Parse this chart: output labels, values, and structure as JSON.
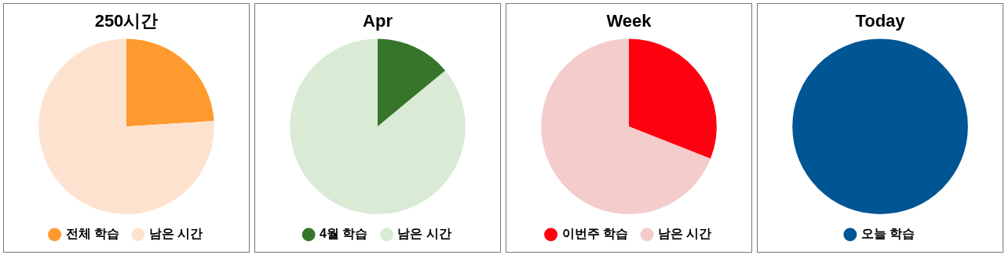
{
  "chart_data": [
    {
      "type": "pie",
      "title": "250시간",
      "categories": [
        "전체 학습",
        "남은 시간"
      ],
      "values": [
        24,
        76
      ],
      "colors": [
        "#ff9a2e",
        "#fde3cf"
      ],
      "legend": "bottom"
    },
    {
      "type": "pie",
      "title": "Apr",
      "categories": [
        "4월 학습",
        "남은 시간"
      ],
      "values": [
        14,
        86
      ],
      "colors": [
        "#37762a",
        "#d9ead5"
      ],
      "legend": "bottom"
    },
    {
      "type": "pie",
      "title": "Week",
      "categories": [
        "이번주 학습",
        "남은 시간"
      ],
      "values": [
        31,
        69
      ],
      "colors": [
        "#ff0010",
        "#f4cccc"
      ],
      "legend": "bottom"
    },
    {
      "type": "pie",
      "title": "Today",
      "categories": [
        "오늘 학습"
      ],
      "values": [
        100
      ],
      "colors": [
        "#005594"
      ],
      "legend": "bottom"
    }
  ]
}
